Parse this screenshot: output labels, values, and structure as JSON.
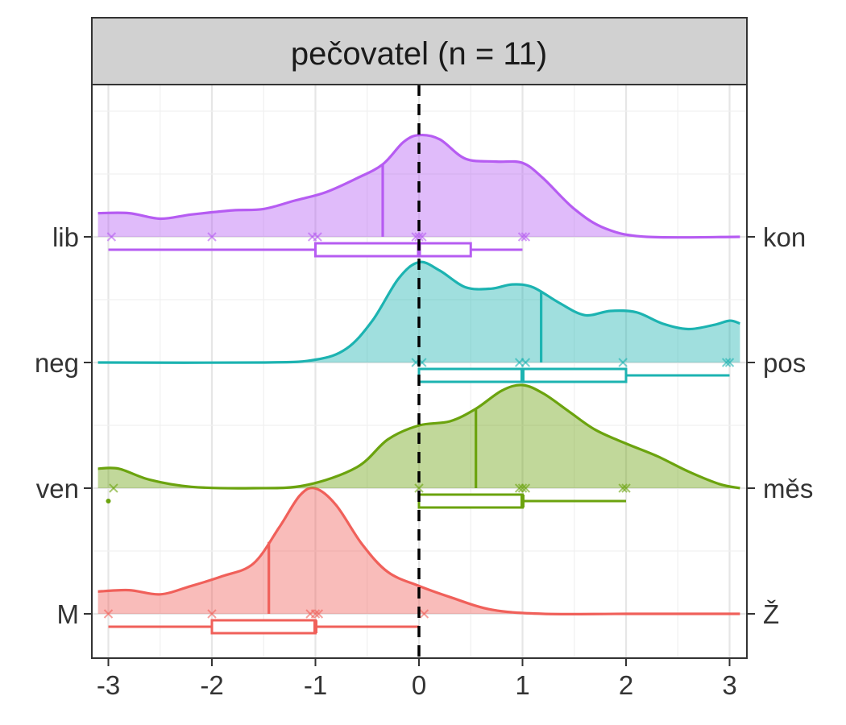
{
  "chart_data": {
    "type": "ridgeline",
    "strip_title": "pečovatel (n = 11)",
    "xlim": [
      -3.1,
      3.1
    ],
    "x_ticks": [
      -3,
      -2,
      -1,
      0,
      1,
      2,
      3
    ],
    "reference_line_x": 0,
    "grid": true,
    "series": [
      {
        "left_label": "M",
        "right_label": "Ž",
        "color": "#F0605A",
        "median": -1.45,
        "points": [
          -3,
          -2,
          -1.05,
          -1,
          -0.97,
          0.05
        ],
        "box": {
          "whisker_low": -3,
          "q1": -2,
          "median": -1,
          "q3": -1,
          "whisker_high": 0
        },
        "outliers": [],
        "density": [
          [
            -3.1,
            0.16
          ],
          [
            -2.8,
            0.17
          ],
          [
            -2.5,
            0.14
          ],
          [
            -2.2,
            0.2
          ],
          [
            -1.9,
            0.27
          ],
          [
            -1.6,
            0.36
          ],
          [
            -1.35,
            0.62
          ],
          [
            -1.15,
            0.85
          ],
          [
            -1.0,
            0.9
          ],
          [
            -0.8,
            0.78
          ],
          [
            -0.55,
            0.5
          ],
          [
            -0.3,
            0.3
          ],
          [
            0.0,
            0.2
          ],
          [
            0.3,
            0.12
          ],
          [
            0.7,
            0.03
          ],
          [
            1.2,
            0.0
          ],
          [
            2.0,
            0.0
          ],
          [
            3.1,
            0.0
          ]
        ]
      },
      {
        "left_label": "ven",
        "right_label": "měs",
        "color": "#6BA30E",
        "median": 0.55,
        "points": [
          -2.95,
          0,
          0.97,
          1,
          1.03,
          1.97,
          2
        ],
        "box": {
          "whisker_low": 0,
          "q1": 0,
          "median": 1,
          "q3": 1,
          "whisker_high": 2
        },
        "outliers": [
          -3
        ],
        "density": [
          [
            -3.1,
            0.14
          ],
          [
            -2.9,
            0.14
          ],
          [
            -2.6,
            0.06
          ],
          [
            -2.2,
            0.01
          ],
          [
            -1.6,
            0.0
          ],
          [
            -1.1,
            0.02
          ],
          [
            -0.6,
            0.15
          ],
          [
            -0.3,
            0.35
          ],
          [
            0.0,
            0.45
          ],
          [
            0.3,
            0.48
          ],
          [
            0.55,
            0.57
          ],
          [
            0.8,
            0.7
          ],
          [
            1.0,
            0.74
          ],
          [
            1.2,
            0.68
          ],
          [
            1.45,
            0.55
          ],
          [
            1.7,
            0.42
          ],
          [
            2.0,
            0.32
          ],
          [
            2.3,
            0.23
          ],
          [
            2.6,
            0.12
          ],
          [
            2.9,
            0.03
          ],
          [
            3.1,
            0.0
          ]
        ]
      },
      {
        "left_label": "neg",
        "right_label": "pos",
        "color": "#1CB3B1",
        "median": 1.18,
        "points": [
          -0.03,
          0.03,
          0.97,
          1.03,
          1.97,
          2.97,
          3.0
        ],
        "box": {
          "whisker_low": 0,
          "q1": 0,
          "median": 1,
          "q3": 2,
          "whisker_high": 3
        },
        "outliers": [],
        "density": [
          [
            -3.1,
            0.0
          ],
          [
            -1.5,
            0.0
          ],
          [
            -1.0,
            0.02
          ],
          [
            -0.7,
            0.1
          ],
          [
            -0.45,
            0.3
          ],
          [
            -0.2,
            0.6
          ],
          [
            0.0,
            0.72
          ],
          [
            0.2,
            0.66
          ],
          [
            0.45,
            0.54
          ],
          [
            0.7,
            0.53
          ],
          [
            0.9,
            0.56
          ],
          [
            1.1,
            0.54
          ],
          [
            1.35,
            0.43
          ],
          [
            1.6,
            0.34
          ],
          [
            1.85,
            0.37
          ],
          [
            2.1,
            0.36
          ],
          [
            2.35,
            0.28
          ],
          [
            2.6,
            0.24
          ],
          [
            2.85,
            0.27
          ],
          [
            3.0,
            0.3
          ],
          [
            3.1,
            0.28
          ]
        ]
      },
      {
        "left_label": "lib",
        "right_label": "kon",
        "color": "#B65CF2",
        "median": -0.35,
        "points": [
          -2.97,
          -2,
          -1.03,
          -0.98,
          -0.03,
          0.0,
          0.03,
          1.0,
          1.03
        ],
        "box": {
          "whisker_low": -3,
          "q1": -1,
          "median": 0,
          "q3": 0.5,
          "whisker_high": 1
        },
        "outliers": [],
        "density": [
          [
            -3.1,
            0.17
          ],
          [
            -2.8,
            0.17
          ],
          [
            -2.5,
            0.13
          ],
          [
            -2.2,
            0.16
          ],
          [
            -1.8,
            0.19
          ],
          [
            -1.5,
            0.2
          ],
          [
            -1.2,
            0.26
          ],
          [
            -0.9,
            0.32
          ],
          [
            -0.6,
            0.42
          ],
          [
            -0.35,
            0.52
          ],
          [
            -0.15,
            0.68
          ],
          [
            0.0,
            0.73
          ],
          [
            0.2,
            0.7
          ],
          [
            0.45,
            0.56
          ],
          [
            0.75,
            0.54
          ],
          [
            1.0,
            0.53
          ],
          [
            1.2,
            0.42
          ],
          [
            1.5,
            0.2
          ],
          [
            1.8,
            0.06
          ],
          [
            2.2,
            0.0
          ],
          [
            3.1,
            0.0
          ]
        ]
      }
    ]
  }
}
